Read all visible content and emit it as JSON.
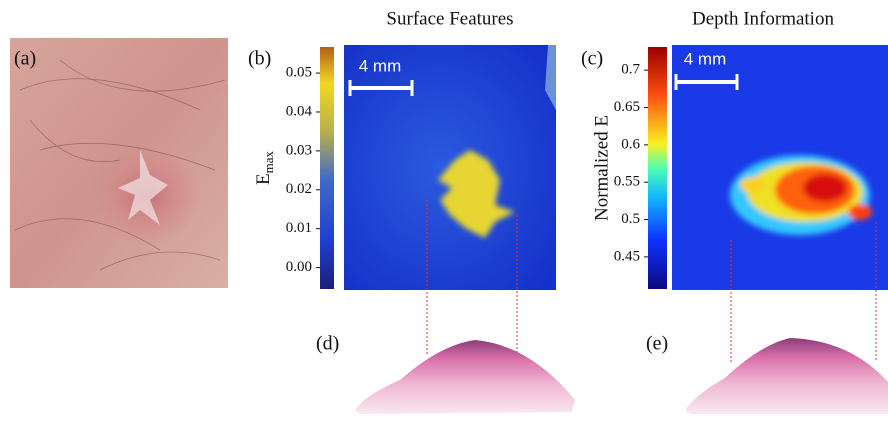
{
  "panels": {
    "a": {
      "label": "(a)"
    },
    "b": {
      "label": "(b)",
      "title": "Surface Features",
      "scale_bar": "4 mm",
      "colorbar": {
        "label": "E",
        "label_subscript": "max",
        "range": [
          -0.0055,
          0.0567
        ],
        "ticks": [
          0.05,
          0.04,
          0.03,
          0.02,
          0.01,
          {
            "value": 0,
            "label": "0.00"
          }
        ]
      }
    },
    "c": {
      "label": "(c)",
      "title": "Depth Information",
      "scale_bar": "4 mm",
      "colorbar": {
        "label": "Normalized E",
        "range": [
          0.407,
          0.731
        ],
        "ticks": [
          0.7,
          0.65,
          0.6,
          0.55,
          0.5,
          0.45
        ]
      }
    },
    "d": {
      "label": "(d)"
    },
    "e": {
      "label": "(e)"
    }
  }
}
